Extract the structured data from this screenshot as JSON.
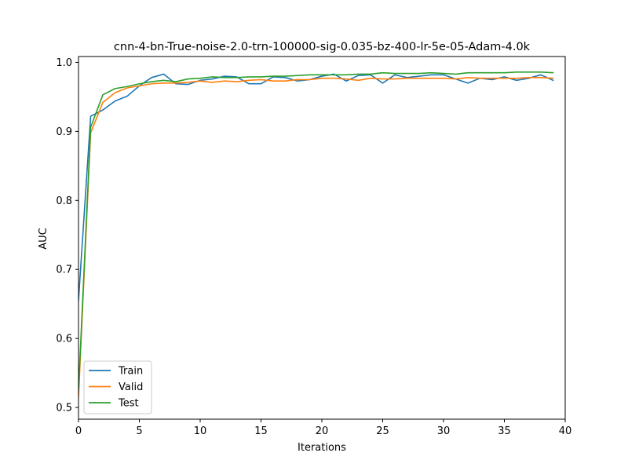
{
  "chart_data": {
    "type": "line",
    "title": "cnn-4-bn-True-noise-2.0-trn-100000-sig-0.035-bz-400-lr-5e-05-Adam-4.0k",
    "xlabel": "Iterations",
    "ylabel": "AUC",
    "xlim": [
      0,
      40
    ],
    "ylim": [
      0.483,
      1.0085
    ],
    "xticks": [
      0,
      5,
      10,
      15,
      20,
      25,
      30,
      35,
      40
    ],
    "yticks": [
      0.5,
      0.6,
      0.7,
      0.8,
      0.9,
      1.0
    ],
    "xtick_labels": [
      "0",
      "5",
      "10",
      "15",
      "20",
      "25",
      "30",
      "35",
      "40"
    ],
    "ytick_labels": [
      "0.5",
      "0.6",
      "0.7",
      "0.8",
      "0.9",
      "1.0"
    ],
    "grid": false,
    "legend": "lower-left",
    "x": [
      0,
      1,
      2,
      3,
      4,
      5,
      6,
      7,
      8,
      9,
      10,
      11,
      12,
      13,
      14,
      15,
      16,
      17,
      18,
      19,
      20,
      21,
      22,
      23,
      24,
      25,
      26,
      27,
      28,
      29,
      30,
      31,
      32,
      33,
      34,
      35,
      36,
      37,
      38,
      39
    ],
    "series": [
      {
        "name": "Train",
        "color": "#1f77b4",
        "values": [
          0.655,
          0.922,
          0.931,
          0.944,
          0.951,
          0.966,
          0.978,
          0.983,
          0.969,
          0.968,
          0.974,
          0.976,
          0.98,
          0.979,
          0.969,
          0.969,
          0.979,
          0.978,
          0.973,
          0.975,
          0.98,
          0.983,
          0.973,
          0.981,
          0.982,
          0.97,
          0.982,
          0.978,
          0.98,
          0.982,
          0.982,
          0.976,
          0.97,
          0.977,
          0.975,
          0.979,
          0.974,
          0.977,
          0.982,
          0.974
        ]
      },
      {
        "name": "Valid",
        "color": "#ff7f0e",
        "values": [
          0.515,
          0.898,
          0.942,
          0.956,
          0.963,
          0.966,
          0.969,
          0.97,
          0.97,
          0.971,
          0.973,
          0.971,
          0.973,
          0.972,
          0.974,
          0.975,
          0.973,
          0.973,
          0.975,
          0.975,
          0.977,
          0.977,
          0.976,
          0.974,
          0.977,
          0.976,
          0.976,
          0.977,
          0.977,
          0.977,
          0.977,
          0.976,
          0.978,
          0.977,
          0.977,
          0.977,
          0.977,
          0.978,
          0.978,
          0.977
        ]
      },
      {
        "name": "Test",
        "color": "#2ca02c",
        "values": [
          0.525,
          0.906,
          0.953,
          0.962,
          0.965,
          0.969,
          0.972,
          0.974,
          0.972,
          0.976,
          0.977,
          0.979,
          0.978,
          0.978,
          0.979,
          0.979,
          0.98,
          0.98,
          0.981,
          0.982,
          0.982,
          0.982,
          0.982,
          0.983,
          0.983,
          0.985,
          0.984,
          0.984,
          0.984,
          0.985,
          0.984,
          0.983,
          0.985,
          0.985,
          0.985,
          0.985,
          0.986,
          0.986,
          0.986,
          0.985
        ]
      }
    ]
  }
}
